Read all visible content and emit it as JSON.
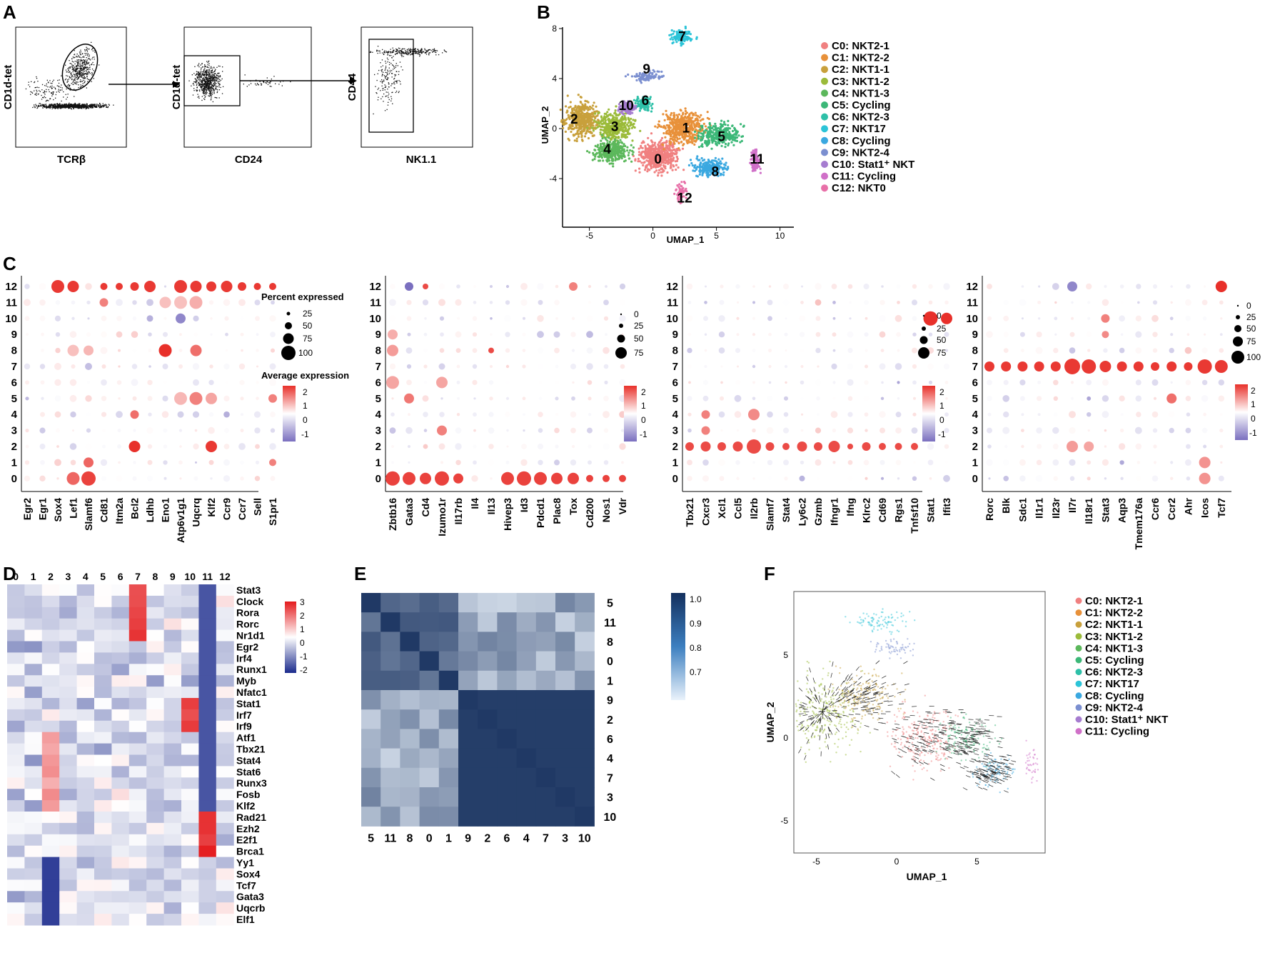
{
  "panels": {
    "A": {
      "label": "A",
      "plots": [
        {
          "ylabel": "CD1d-tet",
          "xlabel": "TCRβ"
        },
        {
          "ylabel": "CD1d-tet",
          "xlabel": "CD24"
        },
        {
          "ylabel": "CD44",
          "xlabel": "NK1.1"
        }
      ]
    },
    "B": {
      "label": "B",
      "xlabel": "UMAP_1",
      "ylabel": "UMAP_2",
      "xticks": [
        "-5",
        "0",
        "5",
        "10"
      ],
      "yticks": [
        "8",
        "4",
        "0",
        "-4"
      ],
      "clusters": [
        {
          "id": "0",
          "name": "C0: NKT2-1",
          "color": "#f08080"
        },
        {
          "id": "1",
          "name": "C1: NKT2-2",
          "color": "#e8913a"
        },
        {
          "id": "2",
          "name": "C2: NKT1-1",
          "color": "#c8a03c"
        },
        {
          "id": "3",
          "name": "C3: NKT1-2",
          "color": "#9bbb3a"
        },
        {
          "id": "4",
          "name": "C4: NKT1-3",
          "color": "#5cb85c"
        },
        {
          "id": "5",
          "name": "C5: Cycling",
          "color": "#3cb878"
        },
        {
          "id": "6",
          "name": "C6: NKT2-3",
          "color": "#2ec0a8"
        },
        {
          "id": "7",
          "name": "C7: NKT17",
          "color": "#2cc4d8"
        },
        {
          "id": "8",
          "name": "C8: Cycling",
          "color": "#3aa8e0"
        },
        {
          "id": "9",
          "name": "C9: NKT2-4",
          "color": "#7b8fd0"
        },
        {
          "id": "10",
          "name": "C10: Stat1⁺ NKT",
          "color": "#a67cd0"
        },
        {
          "id": "11",
          "name": "C11: Cycling",
          "color": "#d070c8"
        },
        {
          "id": "12",
          "name": "C12: NKT0",
          "color": "#e870a8"
        }
      ]
    },
    "C": {
      "label": "C",
      "rows": [
        "12",
        "11",
        "10",
        "9",
        "8",
        "7",
        "6",
        "5",
        "4",
        "3",
        "2",
        "1",
        "0"
      ],
      "legend": {
        "size_title": "Percent expressed",
        "color_title": "Average expression",
        "size_values": [
          "25",
          "50",
          "75",
          "100"
        ],
        "color_values": [
          "2",
          "1",
          "0",
          "-1"
        ],
        "small_size_values_2": [
          "0",
          "25",
          "50",
          "75"
        ],
        "small_size_values_3": [
          "0",
          "25",
          "50",
          "75"
        ],
        "small_size_values_4": [
          "0",
          "25",
          "50",
          "75",
          "100"
        ],
        "small_color_values": [
          "2",
          "1",
          "0",
          "-1"
        ]
      },
      "groups": [
        {
          "genes": [
            "Egr2",
            "Egr1",
            "Sox4",
            "Lef1",
            "Slamf6",
            "Cd81",
            "Itm2a",
            "Bcl2",
            "Ldhb",
            "Eno1",
            "Atp6v1g1",
            "Uqcrq",
            "Klf2",
            "Ccr9",
            "Ccr7",
            "Sell",
            "S1pr1"
          ]
        },
        {
          "genes": [
            "Zbtb16",
            "Gata3",
            "Cd4",
            "Izumo1r",
            "Il17rb",
            "Il4",
            "Il13",
            "Hivep3",
            "Id3",
            "Pdcd1",
            "Plac8",
            "Tox",
            "Cd200",
            "Nos1",
            "Vdr"
          ]
        },
        {
          "genes": [
            "Tbx21",
            "Cxcr3",
            "Xcl1",
            "Ccl5",
            "Il2rb",
            "Slamf7",
            "Stat4",
            "Ly6c2",
            "Gzmb",
            "Ifngr1",
            "Ifng",
            "Klrc2",
            "Cd69",
            "Rgs1",
            "Tnfsf10",
            "Stat1",
            "Ifit3"
          ]
        },
        {
          "genes": [
            "Rorc",
            "Blk",
            "Sdc1",
            "Il1r1",
            "Il23r",
            "Il7r",
            "Il18r1",
            "Stat3",
            "Aqp3",
            "Tmem176a",
            "Ccr6",
            "Ccr2",
            "Ahr",
            "Icos",
            "Tcf7"
          ]
        }
      ]
    },
    "D": {
      "label": "D",
      "columns": [
        "0",
        "1",
        "2",
        "3",
        "4",
        "5",
        "6",
        "7",
        "8",
        "9",
        "10",
        "11",
        "12"
      ],
      "genes": [
        "Stat3",
        "Clock",
        "Rora",
        "Rorc",
        "Nr1d1",
        "Egr2",
        "Irf4",
        "Runx1",
        "Myb",
        "Nfatc1",
        "Stat1",
        "Irf7",
        "Irf9",
        "Atf1",
        "Tbx21",
        "Stat4",
        "Stat6",
        "Runx3",
        "Fosb",
        "Klf2",
        "Rad21",
        "Ezh2",
        "E2f1",
        "Brca1",
        "Yy1",
        "Sox4",
        "Tcf7",
        "Gata3",
        "Uqcrb",
        "Elf1"
      ],
      "scale": [
        "3",
        "2",
        "1",
        "0",
        "-1",
        "-2"
      ]
    },
    "E": {
      "label": "E",
      "order": [
        "5",
        "11",
        "8",
        "0",
        "1",
        "9",
        "2",
        "6",
        "4",
        "7",
        "3",
        "10"
      ],
      "scale": [
        "1.0",
        "0.9",
        "0.8",
        "0.7"
      ]
    },
    "F": {
      "label": "F",
      "xlabel": "UMAP_1",
      "ylabel": "UMAP_2",
      "xticks": [
        "-5",
        "0",
        "5"
      ],
      "yticks": [
        "5",
        "0",
        "-5"
      ],
      "legend": [
        {
          "name": "C0: NKT2-1",
          "color": "#f08080"
        },
        {
          "name": "C1: NKT2-2",
          "color": "#e8913a"
        },
        {
          "name": "C2: NKT1-1",
          "color": "#c8a03c"
        },
        {
          "name": "C3: NKT1-2",
          "color": "#9bbb3a"
        },
        {
          "name": "C4: NKT1-3",
          "color": "#5cb85c"
        },
        {
          "name": "C5: Cycling",
          "color": "#3cb878"
        },
        {
          "name": "C6: NKT2-3",
          "color": "#2ec0a8"
        },
        {
          "name": "C7: NKT17",
          "color": "#2cc4d8"
        },
        {
          "name": "C8: Cycling",
          "color": "#3aa8e0"
        },
        {
          "name": "C9: NKT2-4",
          "color": "#7b8fd0"
        },
        {
          "name": "C10: Stat1⁺ NKT",
          "color": "#a67cd0"
        },
        {
          "name": "C11: Cycling",
          "color": "#d070c8"
        }
      ]
    }
  }
}
